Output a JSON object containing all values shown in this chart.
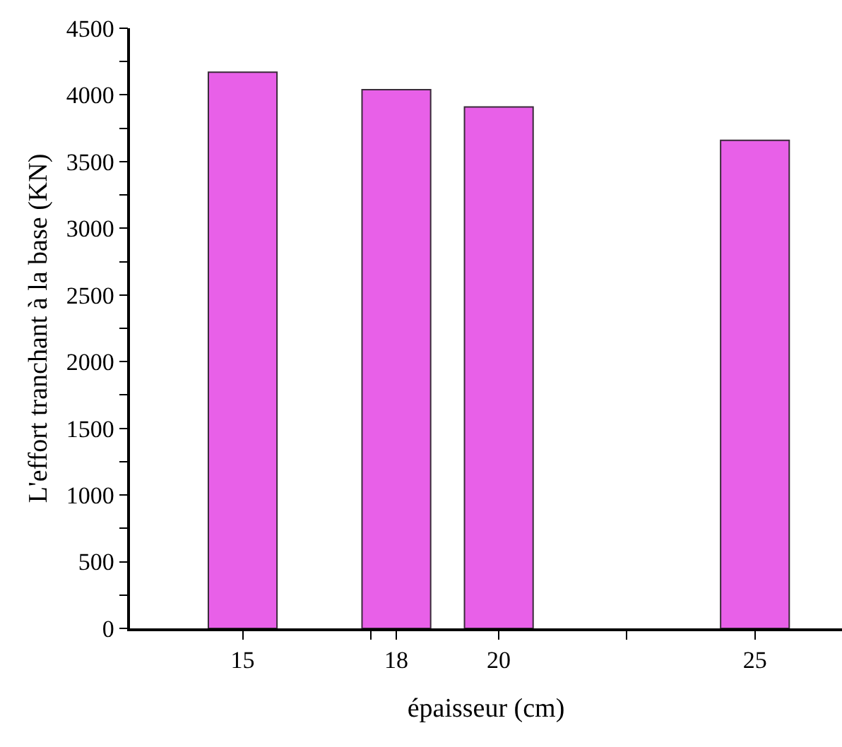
{
  "chart_data": {
    "type": "bar",
    "xlabel": "épaisseur (cm)",
    "ylabel": "L'effort tranchant à la base (KN)",
    "x": [
      15,
      18,
      20,
      25
    ],
    "values": [
      4170,
      4040,
      3910,
      3660
    ],
    "color": "#e860e8",
    "xlim": [
      12.8,
      26.7
    ],
    "xticks": [
      15,
      {
        "value": 17.5,
        "label": null
      },
      18,
      20,
      {
        "value": 22.5,
        "label": null
      },
      25
    ],
    "ylim": [
      0,
      4500
    ],
    "yticks": [
      0,
      {
        "value": 250,
        "label": null
      },
      500,
      {
        "value": 750,
        "label": null
      },
      1000,
      {
        "value": 1250,
        "label": null
      },
      1500,
      {
        "value": 1750,
        "label": null
      },
      2000,
      {
        "value": 2250,
        "label": null
      },
      2500,
      {
        "value": 2750,
        "label": null
      },
      3000,
      {
        "value": 3250,
        "label": null
      },
      3500,
      {
        "value": 3750,
        "label": null
      },
      4000,
      {
        "value": 4250,
        "label": null
      },
      4500
    ],
    "grid": false
  }
}
